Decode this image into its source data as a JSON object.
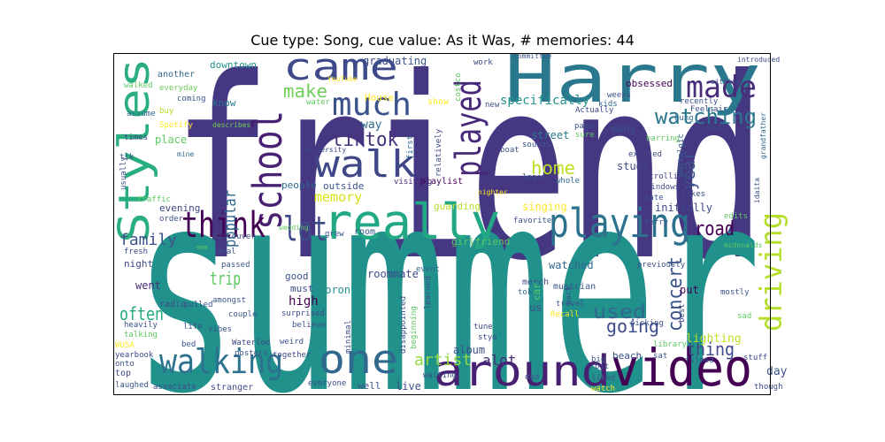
{
  "chart_data": {
    "type": "wordcloud",
    "title": "Cue type: Song, cue value: As it Was, # memories: 44",
    "words": [
      "friend",
      "summer",
      "Harry",
      "Styles",
      "school",
      "came",
      "much",
      "made",
      "watching",
      "walk",
      "played",
      "make",
      "tiktok",
      "really",
      "think",
      "lot",
      "playing",
      "driving",
      "family",
      "walking",
      "one",
      "around",
      "video",
      "home",
      "concert",
      "used",
      "going",
      "thing",
      "year",
      "road",
      "trip",
      "often",
      "popular",
      "memory",
      "artist",
      "alot",
      "high",
      "lighting",
      "day",
      "graduating",
      "downtown",
      "another",
      "walked",
      "everyday",
      "coming",
      "buy",
      "assume",
      "describes",
      "Spotify",
      "times",
      "place",
      "tik",
      "mine",
      "know",
      "House",
      "way",
      "outside",
      "people",
      "university",
      "show",
      "specifically",
      "street",
      "sounds",
      "first",
      "relatively",
      "costco",
      "new",
      "work",
      "committee",
      "obsessed",
      "weeks",
      "kids",
      "Actually",
      "page",
      "sure",
      "many",
      "study",
      "excited",
      "least",
      "whole",
      "playlist",
      "visiting",
      "guarding",
      "singing",
      "initially",
      "favorite",
      "girlfriend",
      "watched",
      "previously",
      "merch",
      "musician",
      "tok",
      "travel",
      "Recall",
      "put",
      "edits",
      "mcdonalds",
      "mostly",
      "sad",
      "filmed",
      "stuff",
      "though",
      "introduced",
      "recently",
      "Feels",
      "air",
      "hung",
      "desk",
      "barring",
      "nostalgic",
      "scrolling",
      "windows",
      "late",
      "likes",
      "sitting",
      "grandfather",
      "idaita",
      "Vancouver",
      "wedding",
      "grew",
      "room",
      "roommate",
      "event",
      "toronto",
      "good",
      "must",
      "believe",
      "surprised",
      "radio",
      "went",
      "night",
      "fresh",
      "evening",
      "order",
      "traffic",
      "usually",
      "deal",
      "mom",
      "passed",
      "pulled",
      "amongst",
      "heavily",
      "talking",
      "life",
      "vibes",
      "couple",
      "weird",
      "WUSA",
      "Waterloo",
      "yearbook",
      "posters",
      "onto",
      "bed",
      "top",
      "together",
      "laughed",
      "associate",
      "stranger",
      "everyone",
      "well",
      "live",
      "minimal",
      "disappointed",
      "beginning",
      "learned",
      "waiting",
      "album",
      "tune",
      "stye",
      "us",
      "car",
      "back",
      "best",
      "picking",
      "library",
      "sat",
      "dad",
      "big",
      "bit",
      "liked",
      "beach",
      "watch",
      "nighter",
      "boat",
      "ferry",
      "water",
      "YouTube"
    ],
    "colors": [
      "#453781",
      "#21918c",
      "#2a788e",
      "#29af7f",
      "#482173",
      "#3e4a89",
      "#3b528b",
      "#472c7a",
      "#2a788e",
      "#3f4788",
      "#482878",
      "#6ece58",
      "#46327e",
      "#22a884",
      "#440154",
      "#3e4989",
      "#2c728e",
      "#b5de2b",
      "#3b528b",
      "#2c728e",
      "#31688e",
      "#482071",
      "#440154",
      "#bddf26",
      "#3b528b",
      "#31688e",
      "#3e4a89",
      "#3e4a89",
      "#3b528b",
      "#440154",
      "#5ec962",
      "#25ab82",
      "#31688e",
      "#d8e219",
      "#90d743",
      "#472c7a",
      "#440154",
      "#bddf26",
      "#3b528b",
      "#3b528b",
      "#21918c",
      "#31688e",
      "#5ec962",
      "#6ece58",
      "#3b528b",
      "#b5de2b",
      "#31688e",
      "#6ece58",
      "#fde725",
      "#3e4a89",
      "#5ec962",
      "#3b528b",
      "#31688e",
      "#2a788e",
      "#fde725",
      "#31688e",
      "#3b528b",
      "#31688e",
      "#3e4a89",
      "#fde725",
      "#21918c",
      "#2a788e",
      "#3b528b",
      "#31688e",
      "#3e4a89",
      "#5ec962",
      "#3b528b",
      "#3e4a89",
      "#3b528b",
      "#440154",
      "#3b528b",
      "#31688e",
      "#3e4a89",
      "#3b528b",
      "#5ec962",
      "#3b528b",
      "#3e4a89",
      "#3e4a89",
      "#3b528b",
      "#31688e",
      "#440154",
      "#482878",
      "#b5de2b",
      "#fde725",
      "#3e4a89",
      "#3b528b",
      "#5ec962",
      "#31688e",
      "#3b528b",
      "#3e4a89",
      "#3b528b",
      "#31688e",
      "#3b528b",
      "#fde725",
      "#440154",
      "#5ec962",
      "#5ec962",
      "#3b528b",
      "#5ec962",
      "#3b528b",
      "#3e4a89",
      "#3e4a89",
      "#3e4a89",
      "#3b528b",
      "#3b528b",
      "#3b528b",
      "#31688e",
      "#3e4a89",
      "#5ec962",
      "#31688e",
      "#3e4a89",
      "#3e4a89",
      "#3b528b",
      "#3b528b",
      "#3b528b",
      "#31688e",
      "#3b528b",
      "#3e4a89",
      "#5ec962",
      "#3b528b",
      "#3b528b",
      "#3e4a89",
      "#31688e",
      "#21918c",
      "#3b528b",
      "#3e4a89",
      "#3b528b",
      "#3e4a89",
      "#3e4a89",
      "#472c7a",
      "#3e4a89",
      "#3e4a89",
      "#3e4a89",
      "#3b528b",
      "#5ec962",
      "#3b528b",
      "#3b528b",
      "#5ec962",
      "#3b528b",
      "#3b528b",
      "#3b528b",
      "#3b528b",
      "#5ec962",
      "#3b528b",
      "#3b528b",
      "#3b528b",
      "#3b528b",
      "#fde725",
      "#3e4a89",
      "#3e4a89",
      "#3b528b",
      "#3b528b",
      "#3b528b",
      "#3e4a89",
      "#3e4a89",
      "#3b528b",
      "#3e4a89",
      "#3e4a89",
      "#3e4a89",
      "#3b528b",
      "#3b528b",
      "#3b528b",
      "#3b528b",
      "#5ec962",
      "#3b528b",
      "#3b528b",
      "#3b528b",
      "#3e4a89",
      "#3e4a89",
      "#3b528b",
      "#5ec962",
      "#3b528b",
      "#3e4a89",
      "#3b528b",
      "#5ec962",
      "#3b528b",
      "#3b528b",
      "#3b528b",
      "#3b528b",
      "#3b528b",
      "#3b528b",
      "#fde725",
      "#fde725",
      "#3b528b",
      "#3b528b",
      "#5ec962",
      "#fde725"
    ]
  }
}
